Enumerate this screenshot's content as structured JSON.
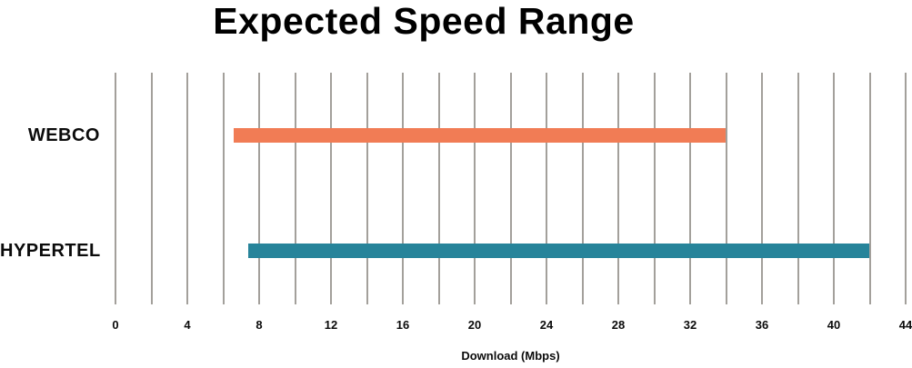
{
  "chart_data": {
    "type": "bar",
    "orientation": "horizontal-range",
    "title": "Expected Speed Range",
    "xlabel": "Download (Mbps)",
    "ylabel": "",
    "categories": [
      "WEBCO",
      "HYPERTEL"
    ],
    "series": [
      {
        "name": "WEBCO",
        "range_mbps": [
          6.6,
          34
        ],
        "color": "#F17C55"
      },
      {
        "name": "HYPERTEL",
        "range_mbps": [
          7.4,
          42
        ],
        "color": "#27849A"
      }
    ],
    "xlim": [
      0,
      44
    ],
    "xticks": [
      0,
      4,
      8,
      12,
      16,
      20,
      24,
      28,
      32,
      36,
      40,
      44
    ],
    "gridline_step": 2,
    "grid": true,
    "legend": "none",
    "colors": {
      "gridline": "#A3A09B",
      "text": "#0b0b0b",
      "background": "#ffffff"
    }
  }
}
